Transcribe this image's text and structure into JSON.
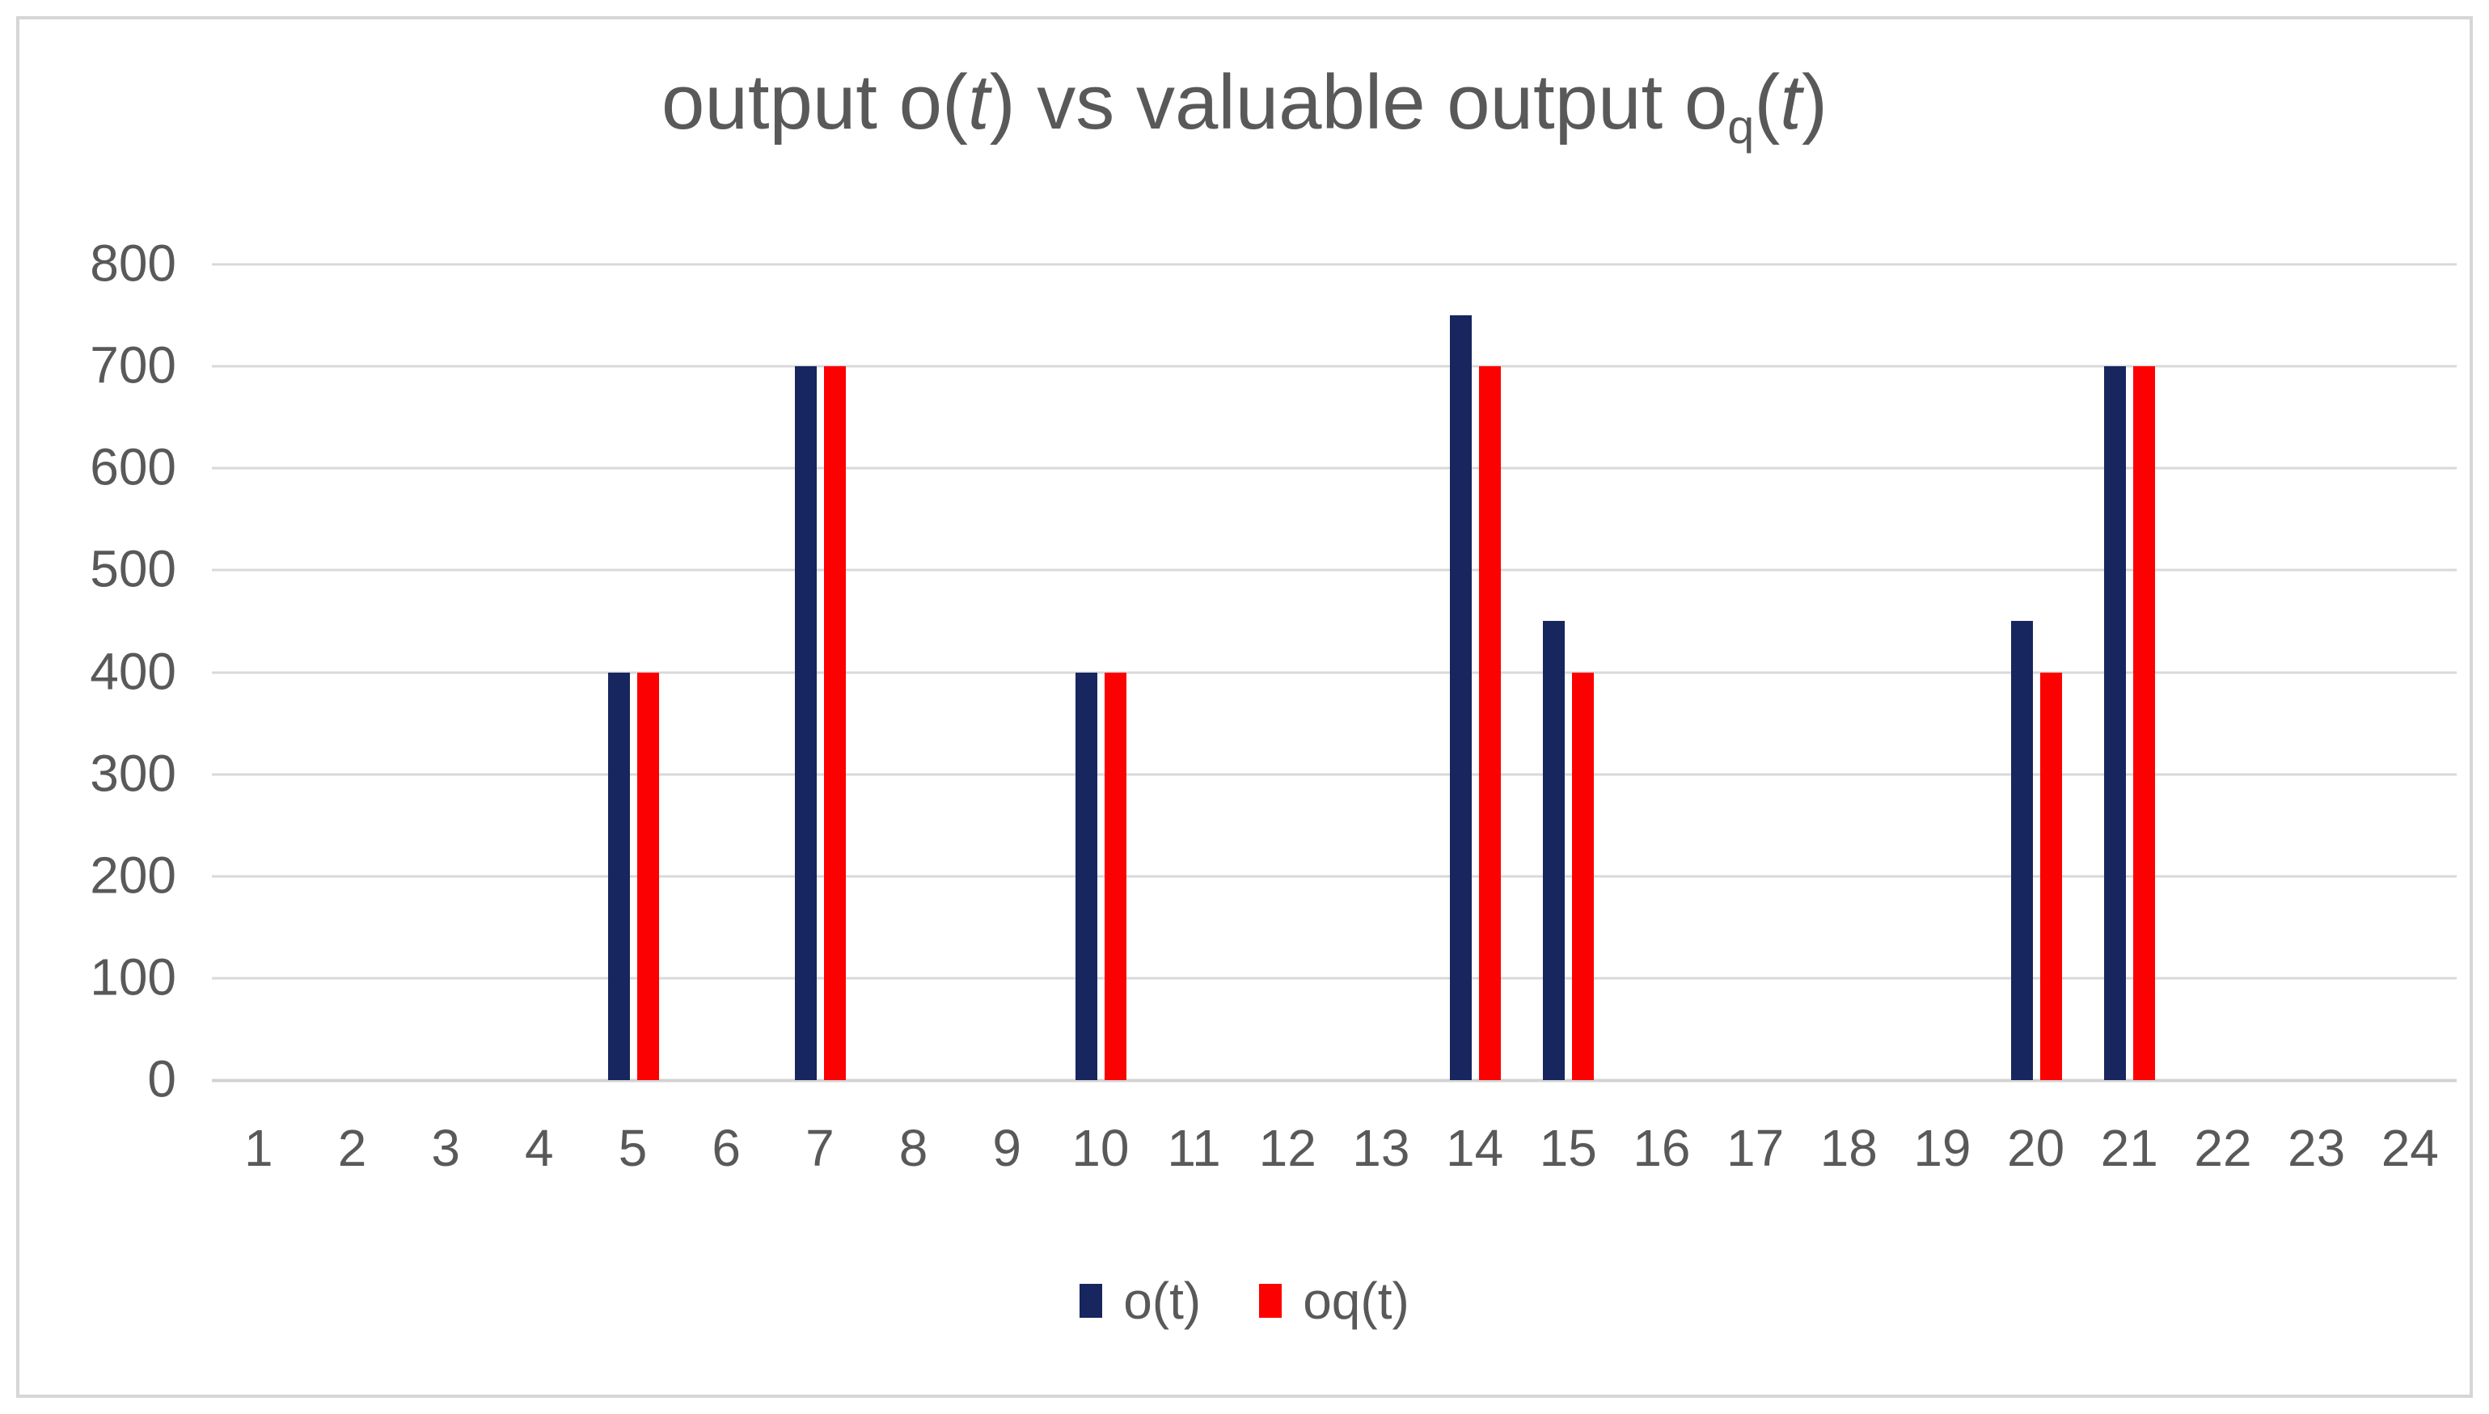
{
  "chart": {
    "title_parts": {
      "p1": "output o(",
      "t1": "t",
      "p2": ") vs valuable output o",
      "sub": "q",
      "p3": "(",
      "t2": "t",
      "p4": ")"
    }
  },
  "chart_data": {
    "type": "bar",
    "title": "output o(t) vs valuable output oq(t)",
    "categories": [
      "1",
      "2",
      "3",
      "4",
      "5",
      "6",
      "7",
      "8",
      "9",
      "10",
      "11",
      "12",
      "13",
      "14",
      "15",
      "16",
      "17",
      "18",
      "19",
      "20",
      "21",
      "22",
      "23",
      "24"
    ],
    "series": [
      {
        "name": "o(t)",
        "color": "#17265E",
        "values": [
          0,
          0,
          0,
          0,
          400,
          0,
          700,
          0,
          0,
          400,
          0,
          0,
          0,
          750,
          450,
          0,
          0,
          0,
          0,
          450,
          700,
          0,
          0,
          0
        ]
      },
      {
        "name": "oq(t)",
        "color": "#FC0101",
        "values": [
          0,
          0,
          0,
          0,
          400,
          0,
          700,
          0,
          0,
          400,
          0,
          0,
          0,
          700,
          400,
          0,
          0,
          0,
          0,
          400,
          700,
          0,
          0,
          0
        ]
      }
    ],
    "xlabel": "",
    "ylabel": "",
    "ylim": [
      0,
      800
    ],
    "yticks": [
      0,
      100,
      200,
      300,
      400,
      500,
      600,
      700,
      800
    ],
    "grid": "horizontal",
    "legend_position": "bottom"
  },
  "colors": {
    "bar_navy": "#17265E",
    "bar_red": "#FC0101",
    "text_gray": "#595959",
    "gridline": "#D9D9D9",
    "frame_border": "#D6D6D6",
    "background": "#FFFFFF"
  }
}
